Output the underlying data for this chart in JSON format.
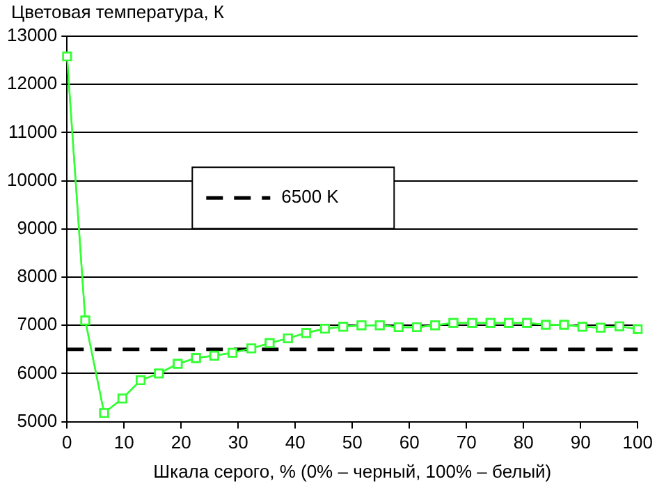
{
  "chart_data": {
    "type": "line",
    "ylabel": "Цветовая температура, К",
    "xlabel": "Шкала серого, % (0% – черный, 100% – белый)",
    "x": [
      0,
      3.2,
      6.5,
      9.7,
      12.9,
      16.1,
      19.4,
      22.6,
      25.8,
      29,
      32.3,
      35.5,
      38.7,
      41.9,
      45.2,
      48.4,
      51.6,
      54.8,
      58.1,
      61.3,
      64.5,
      67.7,
      71,
      74.2,
      77.4,
      80.6,
      83.9,
      87.1,
      90.3,
      93.5,
      96.8,
      100
    ],
    "series": [
      {
        "color": "#33ff33",
        "values": [
          12580,
          7100,
          5180,
          5480,
          5860,
          6000,
          6200,
          6320,
          6370,
          6430,
          6520,
          6630,
          6730,
          6840,
          6930,
          6970,
          7000,
          7000,
          6960,
          6960,
          7000,
          7050,
          7050,
          7050,
          7050,
          7050,
          7010,
          7010,
          6970,
          6950,
          6980,
          6920
        ]
      }
    ],
    "ref_lines": [
      {
        "axis": "y",
        "value": 6500,
        "label": "6500 K",
        "color": "#000000",
        "line_style": "dashed"
      }
    ],
    "xlim": [
      0,
      100
    ],
    "xticks": [
      0,
      10,
      20,
      30,
      40,
      50,
      60,
      70,
      80,
      90,
      100
    ],
    "ylim": [
      5000,
      13000
    ],
    "yticks": [
      5000,
      6000,
      7000,
      8000,
      9000,
      10000,
      11000,
      12000,
      13000
    ],
    "grid": "y",
    "legend": "left",
    "marker": "square",
    "line_style": "solid"
  }
}
